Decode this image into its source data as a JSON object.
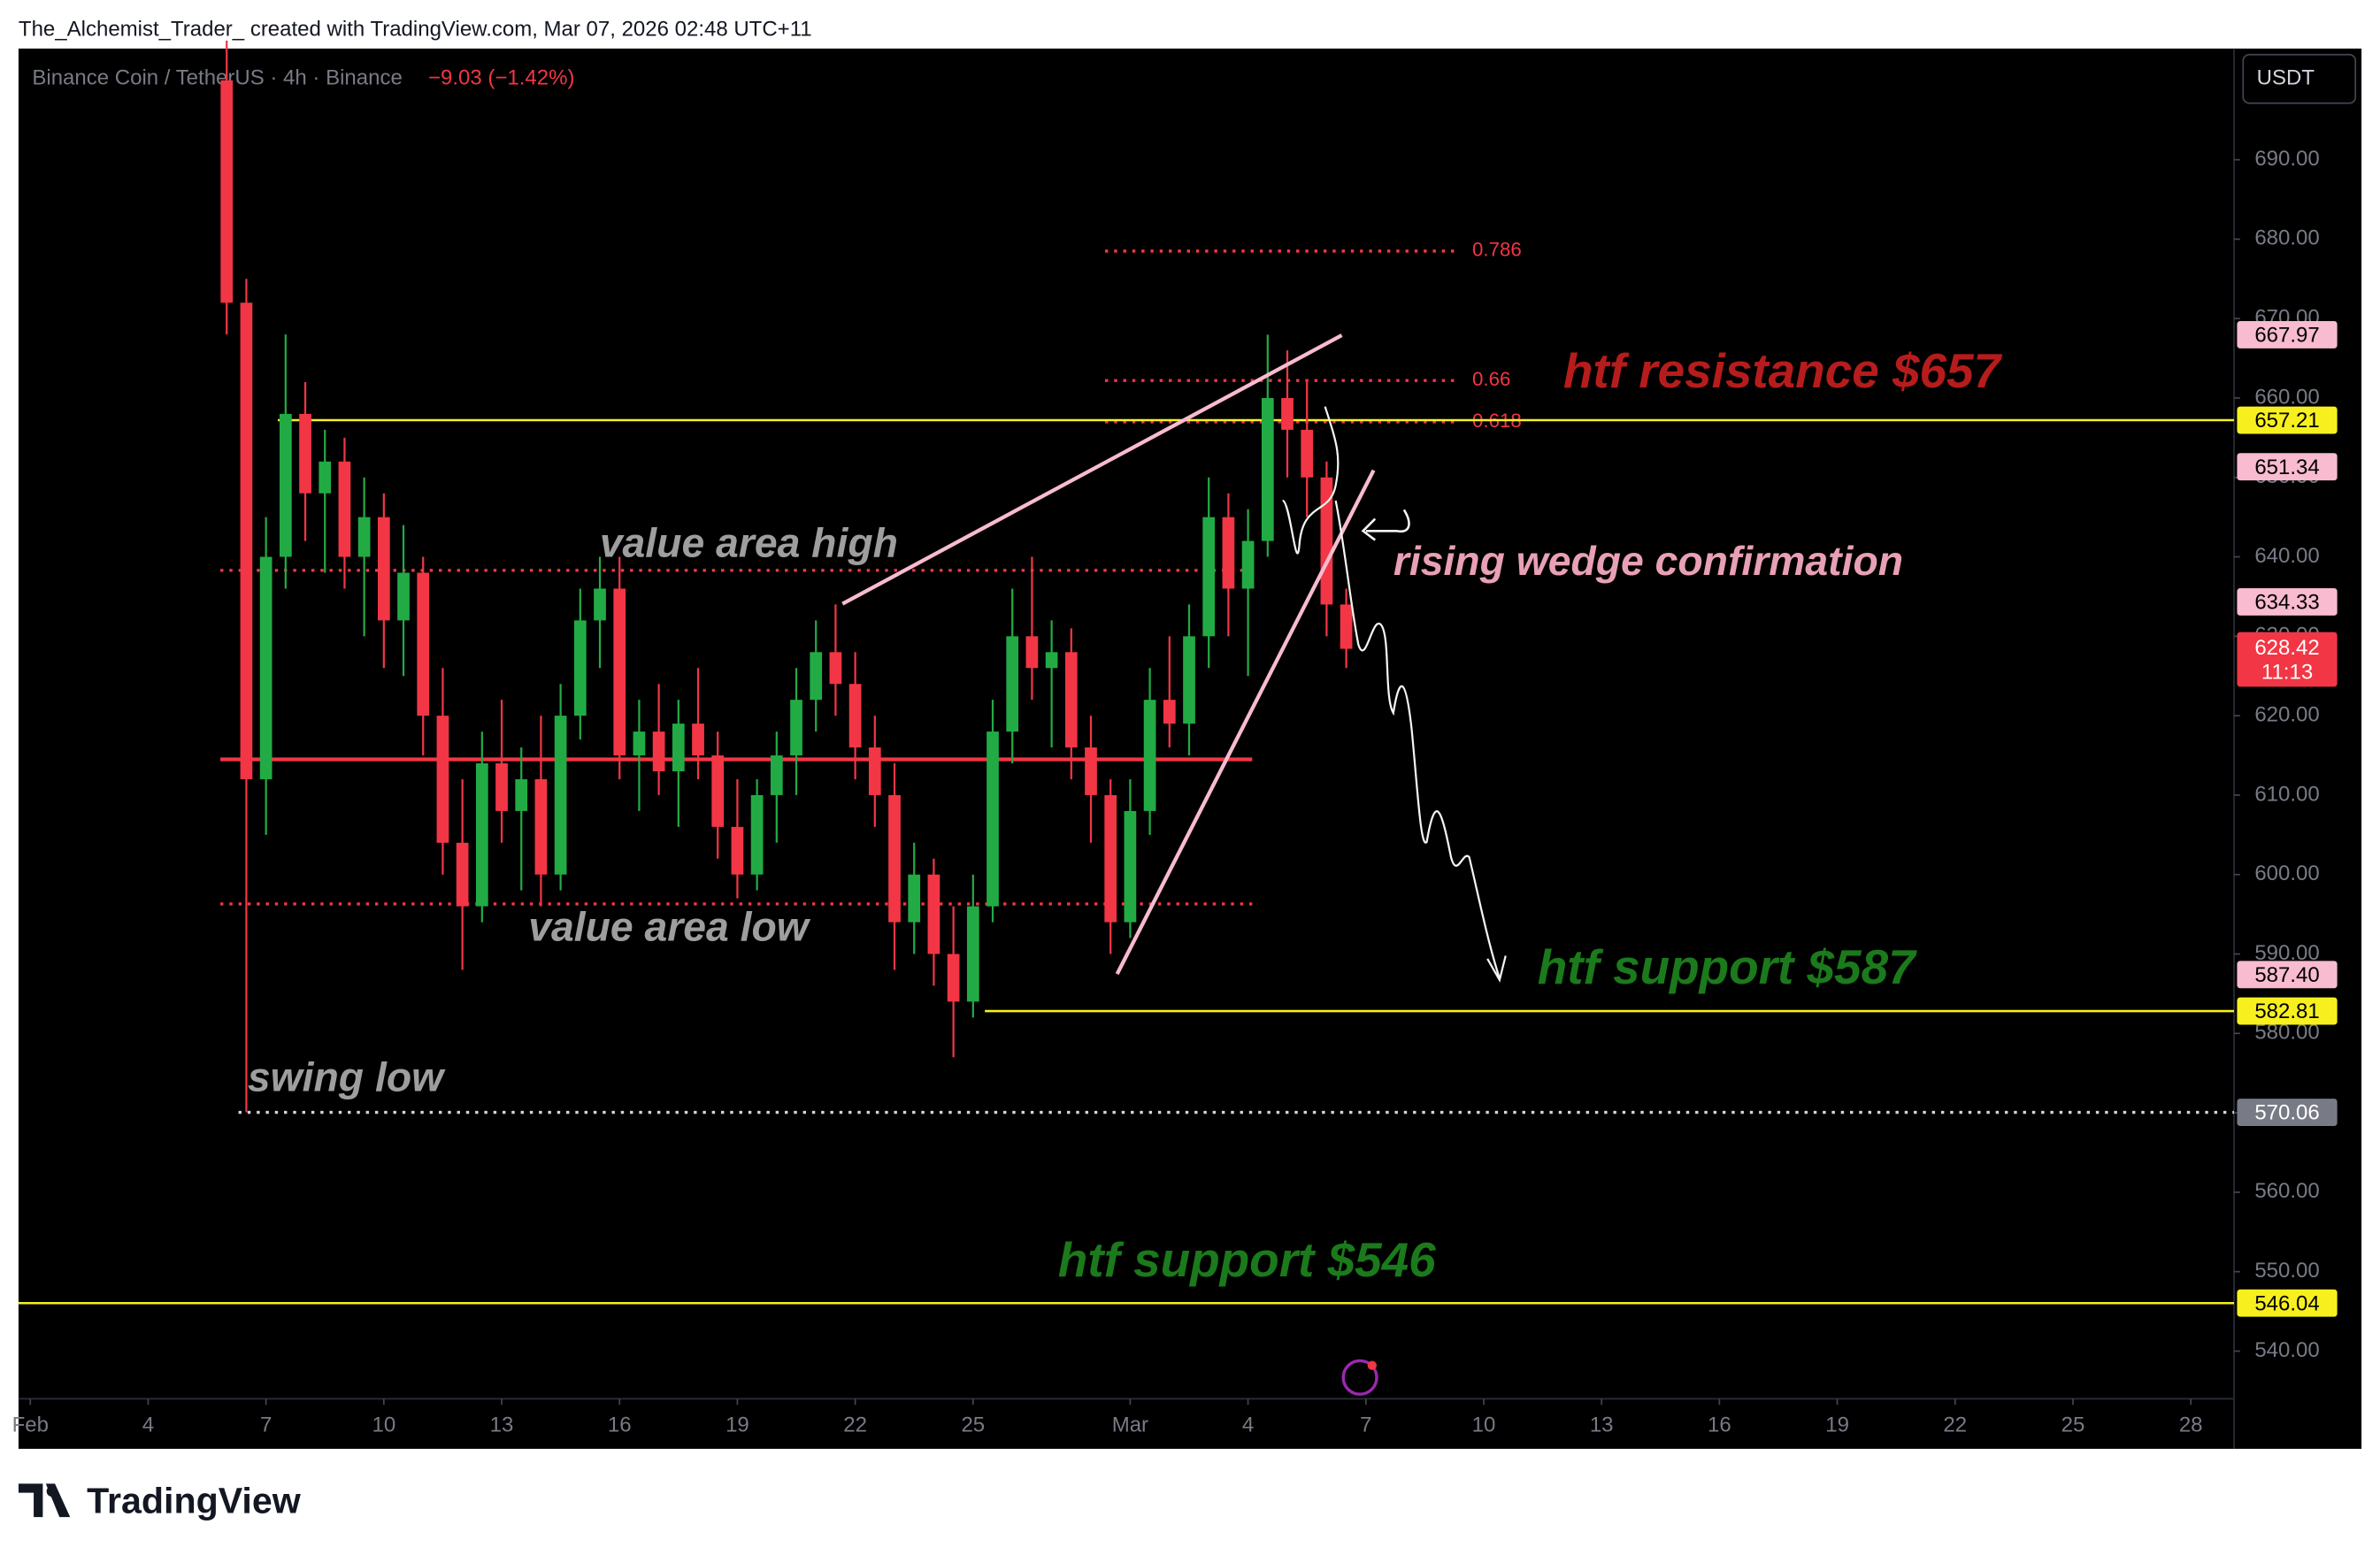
{
  "header": {
    "credit": "The_Alchemist_Trader_ created with TradingView.com, Mar 07, 2026 02:48 UTC+11",
    "symbol": "Binance Coin / TetherUS · 4h · Binance",
    "change": "−9.03 (−1.42%)",
    "currency": "USDT",
    "brand": "TradingView"
  },
  "chart_data": {
    "type": "candlestick",
    "up_color": "#22ab45",
    "down_color": "#f23645",
    "x": [
      6,
      6.5,
      7,
      7.5,
      8,
      8.5,
      9,
      9.5,
      10,
      10.5,
      11,
      11.5,
      12,
      12.5,
      13,
      13.5,
      14,
      14.5,
      15,
      15.5,
      16,
      16.5,
      17,
      17.5,
      18,
      18.5,
      19,
      19.5,
      20,
      20.5,
      21,
      21.5,
      22,
      22.5,
      23,
      23.5,
      24,
      24.5,
      25,
      25.5,
      26,
      26.5,
      27,
      27.5,
      28,
      28.5,
      29,
      29.5,
      30,
      30.5,
      31,
      31.5,
      32,
      32.5,
      33,
      33.5,
      34,
      34.5
    ],
    "open": [
      700,
      672,
      612,
      640,
      658,
      648,
      652,
      640,
      645,
      632,
      638,
      620,
      604,
      596,
      614,
      608,
      612,
      600,
      620,
      632,
      636,
      615,
      618,
      613,
      619,
      615,
      606,
      600,
      610,
      615,
      622,
      628,
      624,
      616,
      610,
      594,
      600,
      590,
      584,
      596,
      618,
      630,
      626,
      628,
      616,
      610,
      594,
      608,
      622,
      619,
      630,
      645,
      636,
      642,
      660,
      656,
      650,
      634
    ],
    "high": [
      705,
      675,
      645,
      668,
      662,
      656,
      655,
      650,
      648,
      644,
      640,
      626,
      612,
      618,
      622,
      616,
      620,
      624,
      636,
      640,
      640,
      622,
      624,
      622,
      626,
      618,
      612,
      612,
      618,
      626,
      632,
      634,
      628,
      620,
      614,
      604,
      602,
      596,
      600,
      622,
      636,
      640,
      632,
      631,
      620,
      612,
      612,
      626,
      630,
      634,
      650,
      648,
      646,
      667.97,
      666,
      662,
      652,
      636
    ],
    "low": [
      668,
      570.06,
      605,
      636,
      642,
      638,
      636,
      630,
      626,
      625,
      615,
      600,
      588,
      594,
      604,
      598,
      596,
      598,
      617,
      626,
      612,
      608,
      610,
      606,
      612,
      602,
      597,
      598,
      604,
      610,
      618,
      620,
      612,
      606,
      588,
      590,
      586,
      577,
      582,
      594,
      614,
      622,
      616,
      612,
      604,
      590,
      592,
      605,
      616,
      615,
      626,
      630,
      625,
      640,
      650,
      645,
      630,
      626
    ],
    "close": [
      672,
      612,
      640,
      658,
      648,
      652,
      640,
      645,
      632,
      638,
      620,
      604,
      596,
      614,
      608,
      612,
      600,
      620,
      632,
      636,
      615,
      618,
      613,
      619,
      615,
      606,
      600,
      610,
      615,
      622,
      628,
      624,
      616,
      610,
      594,
      600,
      590,
      584,
      596,
      618,
      630,
      626,
      628,
      616,
      610,
      594,
      608,
      622,
      619,
      630,
      645,
      636,
      642,
      660,
      656,
      650,
      634,
      628.42
    ],
    "xlim": [
      0.7,
      57.1
    ],
    "xticks": [
      {
        "value": 1,
        "label": "Feb"
      },
      4,
      7,
      10,
      13,
      16,
      19,
      22,
      25,
      {
        "value": 29,
        "label": "Mar"
      },
      {
        "value": 32,
        "label": "4"
      },
      {
        "value": 35,
        "label": "7"
      },
      {
        "value": 38,
        "label": "10"
      },
      {
        "value": 41,
        "label": "13"
      },
      {
        "value": 44,
        "label": "16"
      },
      {
        "value": 47,
        "label": "19"
      },
      {
        "value": 50,
        "label": "22"
      },
      {
        "value": 53,
        "label": "25"
      },
      {
        "value": 56,
        "label": "28"
      }
    ],
    "ylim": [
      534,
      704
    ],
    "yticks": [
      {
        "value": 540,
        "label": "540.00"
      },
      {
        "value": 550,
        "label": "550.00"
      },
      {
        "value": 560,
        "label": "560.00"
      },
      {
        "value": 570,
        "label": "570.00"
      },
      {
        "value": 580,
        "label": "580.00"
      },
      {
        "value": 590,
        "label": "590.00"
      },
      {
        "value": 600,
        "label": "600.00"
      },
      {
        "value": 610,
        "label": "610.00"
      },
      {
        "value": 620,
        "label": "620.00"
      },
      {
        "value": 630,
        "label": "630.00"
      },
      {
        "value": 640,
        "label": "640.00"
      },
      {
        "value": 650,
        "label": "650.00"
      },
      {
        "value": 660,
        "label": "660.00"
      },
      {
        "value": 670,
        "label": "670.00"
      },
      {
        "value": 680,
        "label": "680.00"
      },
      {
        "value": 690,
        "label": "690.00"
      }
    ],
    "levels": [
      {
        "value": 657.21,
        "color": "#f7f01e",
        "line": "solid",
        "from": 7.3
      },
      {
        "value": 582.81,
        "color": "#f7f01e",
        "line": "solid",
        "from": 25.3
      },
      {
        "value": 570.06,
        "color": "#787b86",
        "line": "dotted",
        "from": 6.3
      },
      {
        "value": 546.04,
        "color": "#f7f01e",
        "line": "solid",
        "from": 0.7
      }
    ],
    "markers": [
      {
        "value": 667.97,
        "color": "#f8bbd0"
      },
      {
        "value": 651.34,
        "color": "#f8bbd0"
      },
      {
        "value": 634.33,
        "color": "#f8bbd0"
      },
      {
        "value": 587.4,
        "label": "587.40",
        "color": "#f8bbd0"
      }
    ],
    "last_price": {
      "value": 628.42,
      "countdown": "11:13",
      "color": "#f23645"
    },
    "profile": [
      {
        "value": 638.3,
        "color": "#f23645",
        "line": "dotted"
      },
      {
        "value": 614.5,
        "color": "#f23645",
        "line": "solid"
      },
      {
        "value": 596.3,
        "color": "#f23645",
        "line": "dotted"
      }
    ],
    "fib": [
      {
        "value": 678.5,
        "label": "0.786"
      },
      {
        "value": 662.2,
        "label": "0.66"
      },
      {
        "value": 657,
        "label": "0.618"
      }
    ],
    "fib_color": "#f23645",
    "annotations": [
      {
        "text": "htf resistance $657",
        "color": "#b71c1c"
      },
      {
        "text": "rising wedge confirmation",
        "color": "#e8a0b4"
      },
      {
        "text": "value area high",
        "color": "#9e9e9e"
      },
      {
        "text": "value area low",
        "color": "#9e9e9e"
      },
      {
        "text": "swing low",
        "color": "#9e9e9e"
      },
      {
        "text": "htf support $587",
        "color": "#1b7a1b"
      },
      {
        "text": "htf support $546",
        "color": "#1b7a1b"
      }
    ]
  }
}
